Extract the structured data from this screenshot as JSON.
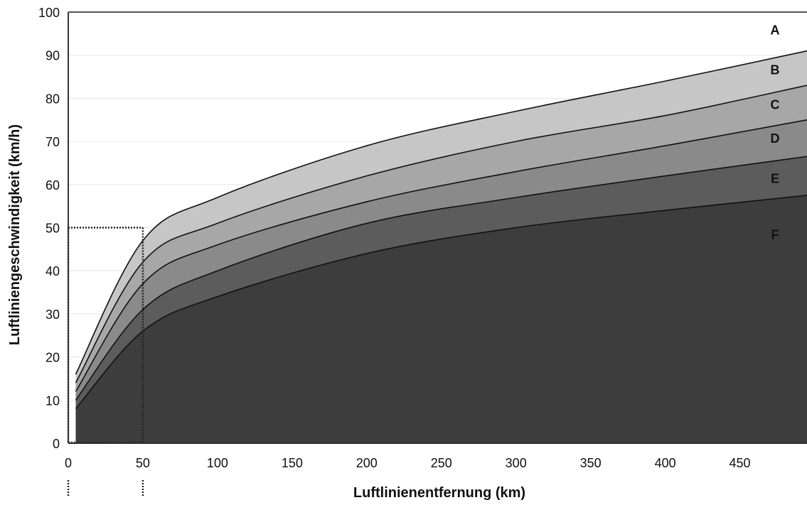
{
  "chart_data": {
    "type": "area",
    "xlabel": "Luftlinienentfernung (km)",
    "ylabel": "Luftliniengeschwindigkeit (km/h)",
    "xlim": [
      0,
      495
    ],
    "ylim": [
      0,
      100
    ],
    "x_ticks": [
      "0",
      "50",
      "100",
      "150",
      "200",
      "250",
      "300",
      "350",
      "400",
      "450"
    ],
    "y_ticks": [
      "0",
      "10",
      "20",
      "30",
      "40",
      "50",
      "60",
      "70",
      "80",
      "90",
      "100"
    ],
    "grid": "horizontal",
    "x": [
      5,
      50,
      100,
      200,
      300,
      400,
      495
    ],
    "series": [
      {
        "name": "A",
        "values": [
          16,
          47,
          57,
          69,
          77,
          84,
          91
        ],
        "color": "#c6c6c6",
        "label_y": 96
      },
      {
        "name": "B",
        "values": [
          14,
          42,
          51,
          62,
          70,
          76,
          83
        ],
        "color": "#a7a7a7",
        "label_y": 86.7
      },
      {
        "name": "C",
        "values": [
          12,
          37,
          46,
          56,
          63,
          69,
          75
        ],
        "color": "#8a8a8a",
        "label_y": 78.7
      },
      {
        "name": "D",
        "values": [
          10,
          31,
          40,
          51,
          57,
          62,
          66.5
        ],
        "color": "#5c5c5c",
        "label_y": 70.8
      },
      {
        "name": "E",
        "values": [
          8,
          26,
          34,
          44,
          50,
          54,
          57.5
        ],
        "color": "#3d3d3d",
        "label_y": 61.5
      },
      {
        "name": "F",
        "values": [
          0,
          0,
          0,
          0,
          0,
          0,
          0
        ],
        "color": "#1d1d1d",
        "label_y": 48.5
      }
    ],
    "annotations": [
      {
        "type": "dotted-box",
        "x": [
          0,
          50
        ],
        "y": [
          0,
          50
        ]
      }
    ]
  }
}
